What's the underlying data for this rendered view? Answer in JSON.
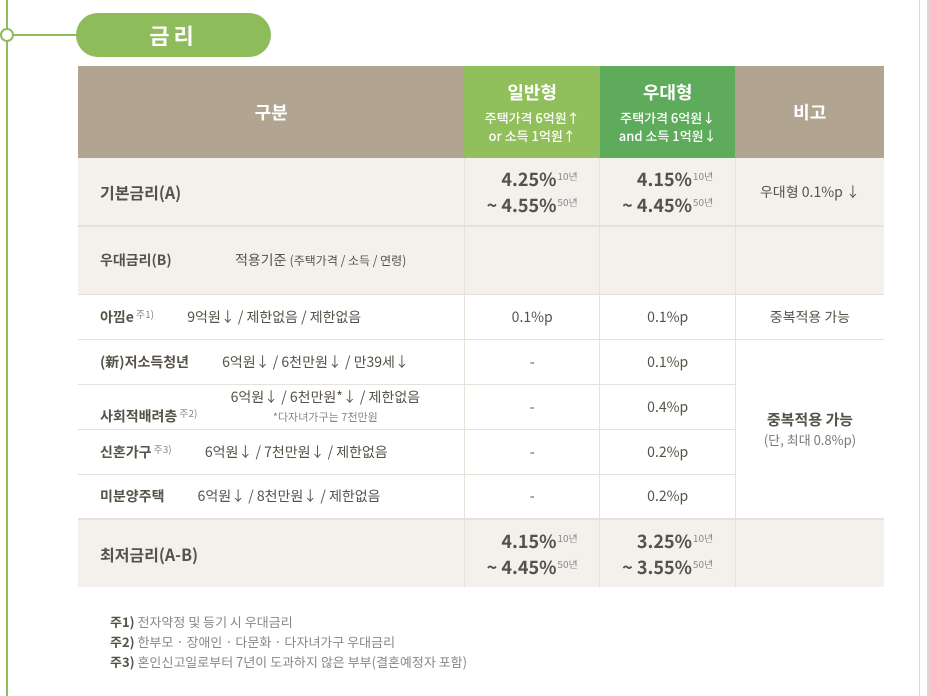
{
  "title": "금리",
  "headers": {
    "gubun": "구분",
    "general": {
      "title": "일반형",
      "sub": "주택가격 6억원↑\nor 소득 1억원↑"
    },
    "pref": {
      "title": "우대형",
      "sub": "주택가격 6억원↓\nand 소득 1억원↓"
    },
    "bigo": "비고"
  },
  "sections": {
    "basic": {
      "label": "기본금리(A)",
      "general": {
        "lo": "4.25%",
        "lo_term": "10년",
        "hi": "~ 4.55%",
        "hi_term": "50년"
      },
      "pref": {
        "lo": "4.15%",
        "lo_term": "10년",
        "hi": "~ 4.45%",
        "hi_term": "50년"
      },
      "note": "우대형 0.1%p ↓"
    },
    "prefix": {
      "label": "우대금리(B)",
      "criteria_label": "적용기준",
      "criteria_detail": "(주택가격 / 소득 / 연령)"
    },
    "rows": [
      {
        "name": "아낌e",
        "sup": "주1)",
        "criteria": "9억원↓ / 제한없음 / 제한없음",
        "general": "0.1%p",
        "pref": "0.1%p",
        "note": "중복적용 가능",
        "note_span": 1
      },
      {
        "name": "(新)저소득청년",
        "sup": "",
        "criteria": "6억원↓ / 6천만원↓ / 만39세↓",
        "general": "-",
        "pref": "0.1%p"
      },
      {
        "name": "사회적배려층",
        "sup": "주2)",
        "criteria": "6억원↓ / 6천만원*↓ / 제한없음",
        "criteria_sub": "*다자녀가구는 7천만원",
        "general": "-",
        "pref": "0.4%p"
      },
      {
        "name": "신혼가구",
        "sup": "주3)",
        "criteria": "6억원↓ / 7천만원↓ / 제한없음",
        "general": "-",
        "pref": "0.2%p"
      },
      {
        "name": "미분양주택",
        "sup": "",
        "criteria": "6억원↓ / 8천만원↓ / 제한없음",
        "general": "-",
        "pref": "0.2%p"
      }
    ],
    "group_note": {
      "line1": "중복적용 가능",
      "line2": "(단, 최대 0.8%p)"
    },
    "final": {
      "label": "최저금리(A-B)",
      "general": {
        "lo": "4.15%",
        "lo_term": "10년",
        "hi": "~ 4.45%",
        "hi_term": "50년"
      },
      "pref": {
        "lo": "3.25%",
        "lo_term": "10년",
        "hi": "~ 3.55%",
        "hi_term": "50년"
      }
    }
  },
  "footnotes": [
    {
      "key": "주1)",
      "text": "전자약정 및 등기 시 우대금리"
    },
    {
      "key": "주2)",
      "text": "한부모 · 장애인 · 다문화 · 다자녀가구 우대금리"
    },
    {
      "key": "주3)",
      "text": "혼인신고일로부터 7년이 도과하지 않은 부부(결혼예정자 포함)"
    }
  ]
}
